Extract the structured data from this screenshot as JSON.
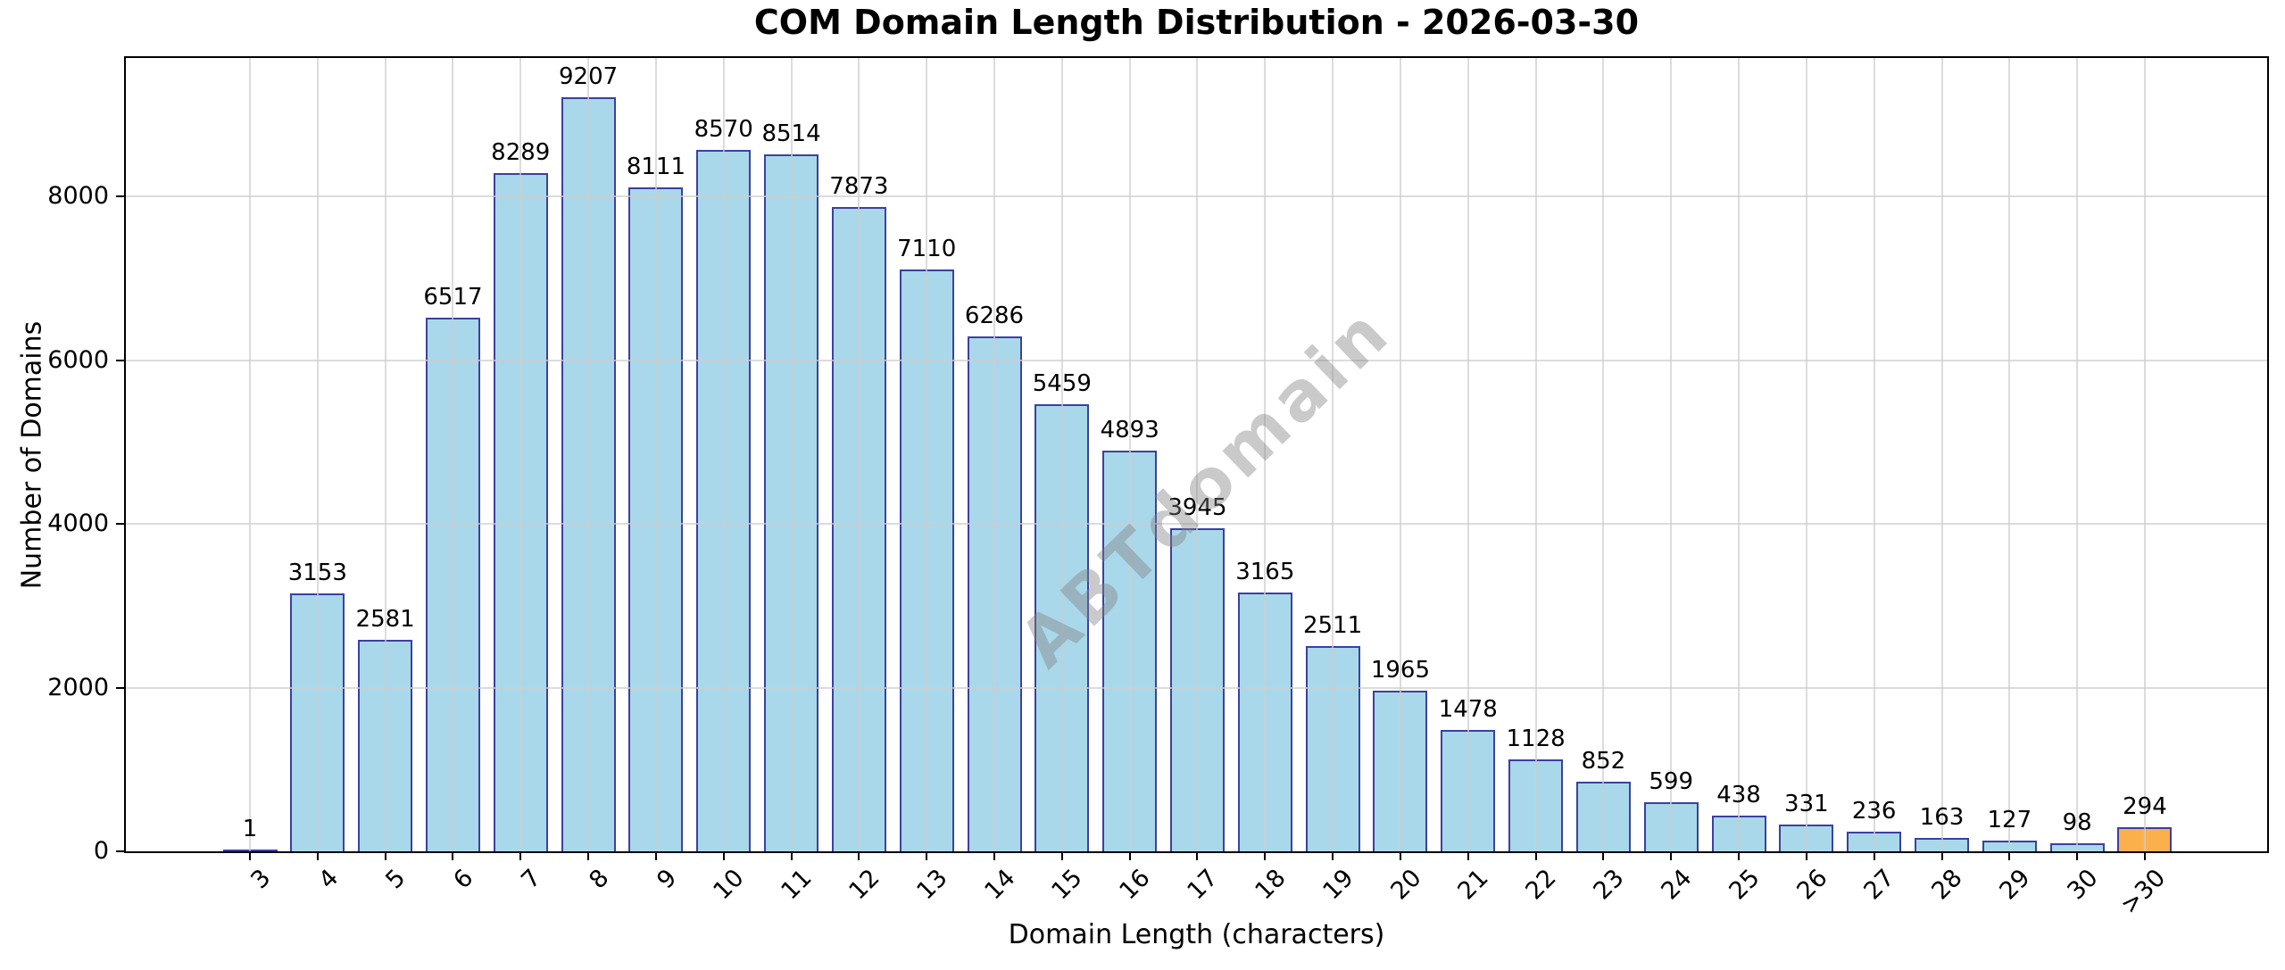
{
  "chart_data": {
    "type": "bar",
    "title": "COM Domain Length Distribution - 2026-03-30",
    "xlabel": "Domain Length (characters)",
    "ylabel": "Number of Domains",
    "categories": [
      "3",
      "4",
      "5",
      "6",
      "7",
      "8",
      "9",
      "10",
      "11",
      "12",
      "13",
      "14",
      "15",
      "16",
      "17",
      "18",
      "19",
      "20",
      "21",
      "22",
      "23",
      "24",
      "25",
      "26",
      "27",
      "28",
      "29",
      "30",
      ">30"
    ],
    "values": [
      1,
      3153,
      2581,
      6517,
      8289,
      9207,
      8111,
      8570,
      8514,
      7873,
      7110,
      6286,
      5459,
      4893,
      3945,
      3165,
      2511,
      1965,
      1478,
      1128,
      852,
      599,
      438,
      331,
      236,
      163,
      127,
      98,
      294
    ],
    "yticks": [
      0,
      2000,
      4000,
      6000,
      8000
    ],
    "ylim": [
      0,
      9690
    ],
    "grid": true,
    "legend_position": "none",
    "watermark": "ABTdomain",
    "bar_fill_color": "#a9d8ea",
    "bar_edge_color": "#3c40a0",
    "highlight_index": 28,
    "highlight_fill_color": "#fbb04c",
    "grid_color": "#d8d8d8",
    "value_labels_shown": true
  }
}
